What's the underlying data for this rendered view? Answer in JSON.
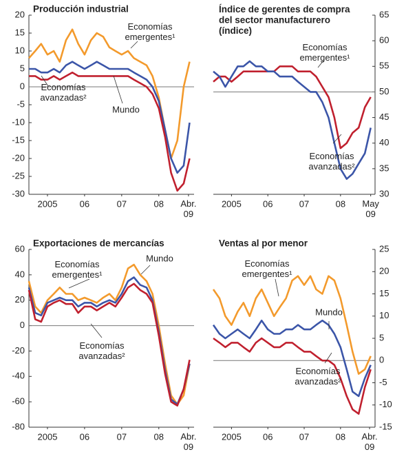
{
  "chart_data": [
    {
      "type": "line",
      "title": "Producción industrial",
      "axis_side": "left",
      "x": [
        2005.0,
        2005.17,
        2005.33,
        2005.5,
        2005.67,
        2005.83,
        2006.0,
        2006.17,
        2006.33,
        2006.5,
        2006.67,
        2006.83,
        2007.0,
        2007.17,
        2007.33,
        2007.5,
        2007.67,
        2007.83,
        2008.0,
        2008.17,
        2008.33,
        2008.5,
        2008.67,
        2008.83,
        2009.0,
        2009.17,
        2009.33
      ],
      "xlim": [
        2005.0,
        2009.45
      ],
      "xticks": [
        {
          "value": 2005.5,
          "label": "2005"
        },
        {
          "value": 2006.5,
          "label": "06"
        },
        {
          "value": 2007.5,
          "label": "07"
        },
        {
          "value": 2008.5,
          "label": "08"
        },
        {
          "value": 2009.3,
          "label": "Abr.\n09"
        }
      ],
      "ylim": [
        -30,
        20
      ],
      "yticks": [
        -30,
        -25,
        -20,
        -15,
        -10,
        -5,
        0,
        5,
        10,
        15,
        20
      ],
      "hline": 0,
      "series": [
        {
          "name": "Economías\nemergentes¹",
          "color": "#f39a2c",
          "values": [
            8,
            10,
            12,
            9,
            10,
            7,
            13,
            16,
            12,
            9,
            13,
            15,
            14,
            11,
            10,
            9,
            10,
            8,
            7,
            6,
            3,
            -3,
            -12,
            -20,
            -15,
            0,
            7
          ]
        },
        {
          "name": "Mundo",
          "color": "#3b55a8",
          "values": [
            5,
            5,
            4,
            4,
            5,
            4,
            6,
            7,
            6,
            5,
            6,
            7,
            6,
            5,
            5,
            5,
            5,
            4,
            3,
            2,
            0,
            -4,
            -12,
            -20,
            -24,
            -22,
            -10
          ]
        },
        {
          "name": "Economías\navanzadas²",
          "color": "#c0202e",
          "values": [
            3,
            3,
            2,
            2,
            3,
            2,
            3,
            4,
            3,
            3,
            3,
            3,
            3,
            3,
            3,
            3,
            3,
            2,
            1,
            0,
            -2,
            -6,
            -14,
            -24,
            -29,
            -27,
            -20
          ]
        }
      ]
    },
    {
      "type": "line",
      "title": "Índice de gerentes de compra\ndel sector manufacturero\n(índice)",
      "axis_side": "right",
      "x": [
        2005.0,
        2005.17,
        2005.33,
        2005.5,
        2005.67,
        2005.83,
        2006.0,
        2006.17,
        2006.33,
        2006.5,
        2006.67,
        2006.83,
        2007.0,
        2007.17,
        2007.33,
        2007.5,
        2007.67,
        2007.83,
        2008.0,
        2008.17,
        2008.33,
        2008.5,
        2008.67,
        2008.83,
        2009.0,
        2009.17,
        2009.33
      ],
      "xlim": [
        2005.0,
        2009.45
      ],
      "xticks": [
        {
          "value": 2005.5,
          "label": "2005"
        },
        {
          "value": 2006.5,
          "label": "06"
        },
        {
          "value": 2007.5,
          "label": "07"
        },
        {
          "value": 2008.5,
          "label": "08"
        },
        {
          "value": 2009.33,
          "label": "May\n09"
        }
      ],
      "ylim": [
        30,
        65
      ],
      "yticks": [
        30,
        35,
        40,
        45,
        50,
        55,
        60,
        65
      ],
      "hline": 50,
      "series": [
        {
          "name": "Economías\nemergentes¹",
          "color": "#c0202e",
          "values": [
            52,
            53,
            53,
            52,
            53,
            54,
            54,
            54,
            54,
            54,
            54,
            55,
            55,
            55,
            54,
            54,
            54,
            53,
            51,
            49,
            45,
            39,
            40,
            42,
            43,
            47,
            49
          ]
        },
        {
          "name": "Economías\navanzadas²",
          "color": "#3b55a8",
          "values": [
            54,
            53,
            51,
            53,
            55,
            55,
            56,
            55,
            55,
            54,
            54,
            53,
            53,
            53,
            52,
            51,
            50,
            50,
            48,
            45,
            40,
            35,
            33,
            34,
            36,
            38,
            43
          ]
        }
      ]
    },
    {
      "type": "line",
      "title": "Exportaciones de mercancías",
      "axis_side": "left",
      "x": [
        2005.0,
        2005.17,
        2005.33,
        2005.5,
        2005.67,
        2005.83,
        2006.0,
        2006.17,
        2006.33,
        2006.5,
        2006.67,
        2006.83,
        2007.0,
        2007.17,
        2007.33,
        2007.5,
        2007.67,
        2007.83,
        2008.0,
        2008.17,
        2008.33,
        2008.5,
        2008.67,
        2008.83,
        2009.0,
        2009.17,
        2009.33
      ],
      "xlim": [
        2005.0,
        2009.45
      ],
      "xticks": [
        {
          "value": 2005.5,
          "label": "2005"
        },
        {
          "value": 2006.5,
          "label": "06"
        },
        {
          "value": 2007.5,
          "label": "07"
        },
        {
          "value": 2008.5,
          "label": "08"
        },
        {
          "value": 2009.3,
          "label": "Abr.\n09"
        }
      ],
      "ylim": [
        -80,
        60
      ],
      "yticks": [
        -80,
        -60,
        -40,
        -20,
        0,
        20,
        40,
        60
      ],
      "hline": 0,
      "series": [
        {
          "name": "Economías\nemergentes¹",
          "color": "#f39a2c",
          "values": [
            35,
            15,
            10,
            20,
            25,
            30,
            25,
            25,
            20,
            22,
            20,
            18,
            22,
            25,
            20,
            30,
            45,
            48,
            40,
            35,
            25,
            0,
            -30,
            -55,
            -62,
            -55,
            -30
          ]
        },
        {
          "name": "Mundo",
          "color": "#3b55a8",
          "values": [
            30,
            10,
            8,
            18,
            20,
            22,
            20,
            20,
            15,
            18,
            18,
            15,
            18,
            20,
            18,
            25,
            35,
            38,
            32,
            30,
            20,
            -5,
            -35,
            -58,
            -62,
            -50,
            -30
          ]
        },
        {
          "name": "Economías\navanzadas²",
          "color": "#c0202e",
          "values": [
            28,
            5,
            3,
            15,
            18,
            20,
            17,
            17,
            10,
            15,
            15,
            12,
            15,
            18,
            15,
            22,
            30,
            33,
            28,
            25,
            18,
            -8,
            -38,
            -60,
            -63,
            -50,
            -27
          ]
        }
      ]
    },
    {
      "type": "line",
      "title": "Ventas al por menor",
      "axis_side": "right",
      "x": [
        2005.0,
        2005.17,
        2005.33,
        2005.5,
        2005.67,
        2005.83,
        2006.0,
        2006.17,
        2006.33,
        2006.5,
        2006.67,
        2006.83,
        2007.0,
        2007.17,
        2007.33,
        2007.5,
        2007.67,
        2007.83,
        2008.0,
        2008.17,
        2008.33,
        2008.5,
        2008.67,
        2008.83,
        2009.0,
        2009.17,
        2009.33
      ],
      "xlim": [
        2005.0,
        2009.45
      ],
      "xticks": [
        {
          "value": 2005.5,
          "label": "2005"
        },
        {
          "value": 2006.5,
          "label": "06"
        },
        {
          "value": 2007.5,
          "label": "07"
        },
        {
          "value": 2008.5,
          "label": "08"
        },
        {
          "value": 2009.3,
          "label": "Abr.\n09"
        }
      ],
      "ylim": [
        -15,
        25
      ],
      "yticks": [
        -15,
        -10,
        -5,
        0,
        5,
        10,
        15,
        20,
        25
      ],
      "hline": 0,
      "series": [
        {
          "name": "Economías\nemergentes¹",
          "color": "#f39a2c",
          "values": [
            16,
            14,
            10,
            8,
            11,
            13,
            10,
            14,
            16,
            13,
            10,
            12,
            14,
            18,
            19,
            17,
            19,
            16,
            15,
            19,
            18,
            14,
            8,
            2,
            -3,
            -2,
            1
          ]
        },
        {
          "name": "Mundo",
          "color": "#3b55a8",
          "values": [
            8,
            6,
            5,
            6,
            7,
            6,
            5,
            7,
            9,
            7,
            6,
            6,
            7,
            7,
            8,
            7,
            7,
            8,
            9,
            8,
            6,
            3,
            -2,
            -7,
            -8,
            -4,
            -1
          ]
        },
        {
          "name": "Economías\navanzadas²",
          "color": "#c0202e",
          "values": [
            5,
            4,
            3,
            4,
            4,
            3,
            2,
            4,
            5,
            4,
            3,
            3,
            4,
            4,
            3,
            2,
            2,
            1,
            0,
            0,
            -1,
            -4,
            -8,
            -11,
            -12,
            -6,
            -2
          ]
        }
      ]
    }
  ]
}
